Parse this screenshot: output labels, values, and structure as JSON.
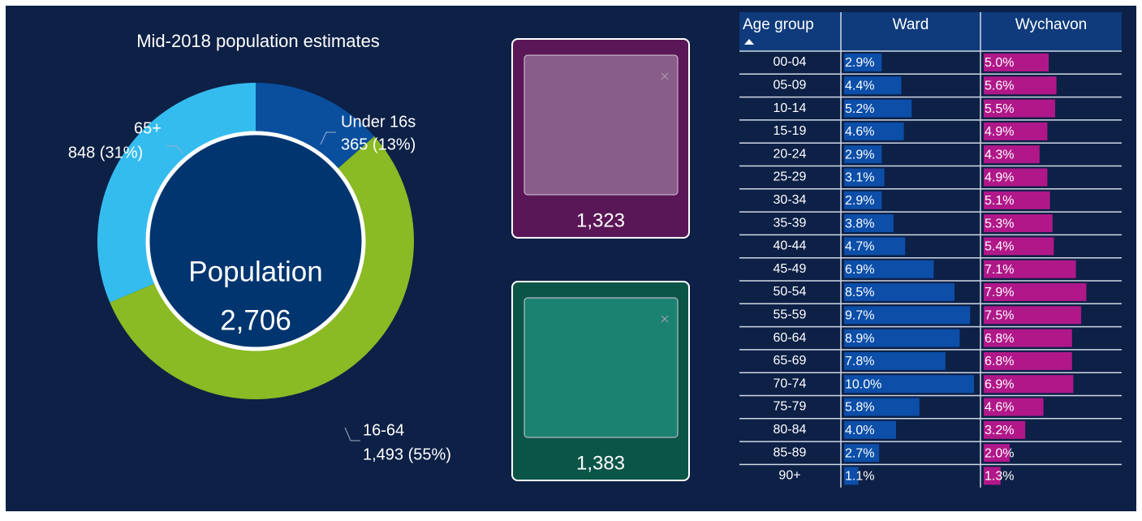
{
  "donut": {
    "title": "Mid-2018 population estimates",
    "center_label": "Population",
    "total": 2706,
    "total_label": "2,706",
    "segments": [
      {
        "name": "Under 16s",
        "value": 365,
        "value_label": "365 (13%)",
        "color": "#0a4f9e"
      },
      {
        "name": "16-64",
        "value": 1493,
        "value_label": "1,493 (55%)",
        "color": "#8aba24"
      },
      {
        "name": "65+",
        "value": 848,
        "value_label": "848 (31%)",
        "color": "#35bcef"
      }
    ]
  },
  "cards": [
    {
      "label": "1,323",
      "color": "#5a1757",
      "inner": "#895d8a"
    },
    {
      "label": "1,383",
      "color": "#0b5548",
      "inner": "#1b8272"
    }
  ],
  "table": {
    "columns": [
      "Age group",
      "Ward",
      "Wychavon"
    ],
    "ward_color": "#0c4ea8",
    "wychavon_color": "#b01889",
    "rows": [
      {
        "age": "00-04",
        "ward": 2.9,
        "ward_label": "2.9%",
        "wychavon": 5.0,
        "wychavon_label": "5.0%"
      },
      {
        "age": "05-09",
        "ward": 4.4,
        "ward_label": "4.4%",
        "wychavon": 5.6,
        "wychavon_label": "5.6%"
      },
      {
        "age": "10-14",
        "ward": 5.2,
        "ward_label": "5.2%",
        "wychavon": 5.5,
        "wychavon_label": "5.5%"
      },
      {
        "age": "15-19",
        "ward": 4.6,
        "ward_label": "4.6%",
        "wychavon": 4.9,
        "wychavon_label": "4.9%"
      },
      {
        "age": "20-24",
        "ward": 2.9,
        "ward_label": "2.9%",
        "wychavon": 4.3,
        "wychavon_label": "4.3%"
      },
      {
        "age": "25-29",
        "ward": 3.1,
        "ward_label": "3.1%",
        "wychavon": 4.9,
        "wychavon_label": "4.9%"
      },
      {
        "age": "30-34",
        "ward": 2.9,
        "ward_label": "2.9%",
        "wychavon": 5.1,
        "wychavon_label": "5.1%"
      },
      {
        "age": "35-39",
        "ward": 3.8,
        "ward_label": "3.8%",
        "wychavon": 5.3,
        "wychavon_label": "5.3%"
      },
      {
        "age": "40-44",
        "ward": 4.7,
        "ward_label": "4.7%",
        "wychavon": 5.4,
        "wychavon_label": "5.4%"
      },
      {
        "age": "45-49",
        "ward": 6.9,
        "ward_label": "6.9%",
        "wychavon": 7.1,
        "wychavon_label": "7.1%"
      },
      {
        "age": "50-54",
        "ward": 8.5,
        "ward_label": "8.5%",
        "wychavon": 7.9,
        "wychavon_label": "7.9%"
      },
      {
        "age": "55-59",
        "ward": 9.7,
        "ward_label": "9.7%",
        "wychavon": 7.5,
        "wychavon_label": "7.5%"
      },
      {
        "age": "60-64",
        "ward": 8.9,
        "ward_label": "8.9%",
        "wychavon": 6.8,
        "wychavon_label": "6.8%"
      },
      {
        "age": "65-69",
        "ward": 7.8,
        "ward_label": "7.8%",
        "wychavon": 6.8,
        "wychavon_label": "6.8%"
      },
      {
        "age": "70-74",
        "ward": 10.0,
        "ward_label": "10.0%",
        "wychavon": 6.9,
        "wychavon_label": "6.9%"
      },
      {
        "age": "75-79",
        "ward": 5.8,
        "ward_label": "5.8%",
        "wychavon": 4.6,
        "wychavon_label": "4.6%"
      },
      {
        "age": "80-84",
        "ward": 4.0,
        "ward_label": "4.0%",
        "wychavon": 3.2,
        "wychavon_label": "3.2%"
      },
      {
        "age": "85-89",
        "ward": 2.7,
        "ward_label": "2.7%",
        "wychavon": 2.0,
        "wychavon_label": "2.0%"
      },
      {
        "age": "90+",
        "ward": 1.1,
        "ward_label": "1.1%",
        "wychavon": 1.3,
        "wychavon_label": "1.3%"
      }
    ]
  }
}
